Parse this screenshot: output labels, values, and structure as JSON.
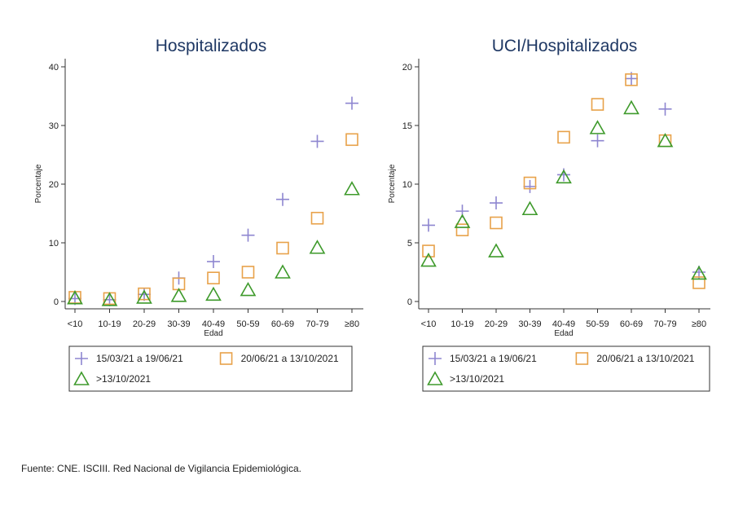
{
  "chart_data": [
    {
      "type": "scatter",
      "title": "Hospitalizados",
      "xlabel": "Edad",
      "ylabel": "Porcentaje",
      "categories": [
        "<10",
        "10-19",
        "20-29",
        "30-39",
        "40-49",
        "50-59",
        "60-69",
        "70-79",
        "≥80"
      ],
      "ylim": [
        0,
        40
      ],
      "yticks": [
        0,
        10,
        20,
        30,
        40
      ],
      "series": [
        {
          "name": "15/03/21 a 19/06/21",
          "marker": "plus",
          "color": "#8e86d0",
          "values": [
            0.5,
            0.3,
            1.2,
            4.0,
            6.8,
            11.3,
            17.4,
            27.3,
            33.8
          ]
        },
        {
          "name": "20/06/21 a 13/10/2021",
          "marker": "square",
          "color": "#e8a24a",
          "values": [
            0.7,
            0.5,
            1.3,
            3.0,
            4.0,
            5.0,
            9.1,
            14.2,
            27.6
          ]
        },
        {
          "name": ">13/10/2021",
          "marker": "triangle",
          "color": "#3e9a2b",
          "values": [
            0.6,
            0.3,
            0.7,
            1.0,
            1.2,
            2.0,
            5.0,
            9.2,
            19.2
          ]
        }
      ]
    },
    {
      "type": "scatter",
      "title": "UCI/Hospitalizados",
      "xlabel": "Edad",
      "ylabel": "Porcentaje",
      "categories": [
        "<10",
        "10-19",
        "20-29",
        "30-39",
        "40-49",
        "50-59",
        "60-69",
        "70-79",
        "≥80"
      ],
      "ylim": [
        0,
        20
      ],
      "yticks": [
        0,
        5,
        10,
        15,
        20
      ],
      "series": [
        {
          "name": "15/03/21 a 19/06/21",
          "marker": "plus",
          "color": "#8e86d0",
          "values": [
            6.5,
            7.7,
            8.4,
            9.8,
            10.8,
            13.7,
            19.0,
            16.4,
            2.5
          ]
        },
        {
          "name": "20/06/21 a 13/10/2021",
          "marker": "square",
          "color": "#e8a24a",
          "values": [
            4.3,
            6.1,
            6.7,
            10.1,
            14.0,
            16.8,
            18.9,
            13.7,
            1.6
          ]
        },
        {
          "name": ">13/10/2021",
          "marker": "triangle",
          "color": "#3e9a2b",
          "values": [
            3.5,
            6.8,
            4.3,
            7.9,
            10.6,
            14.8,
            16.5,
            13.7,
            2.4
          ]
        }
      ]
    }
  ],
  "source": "Fuente: CNE. ISCIII. Red Nacional de Vigilancia Epidemiológica."
}
